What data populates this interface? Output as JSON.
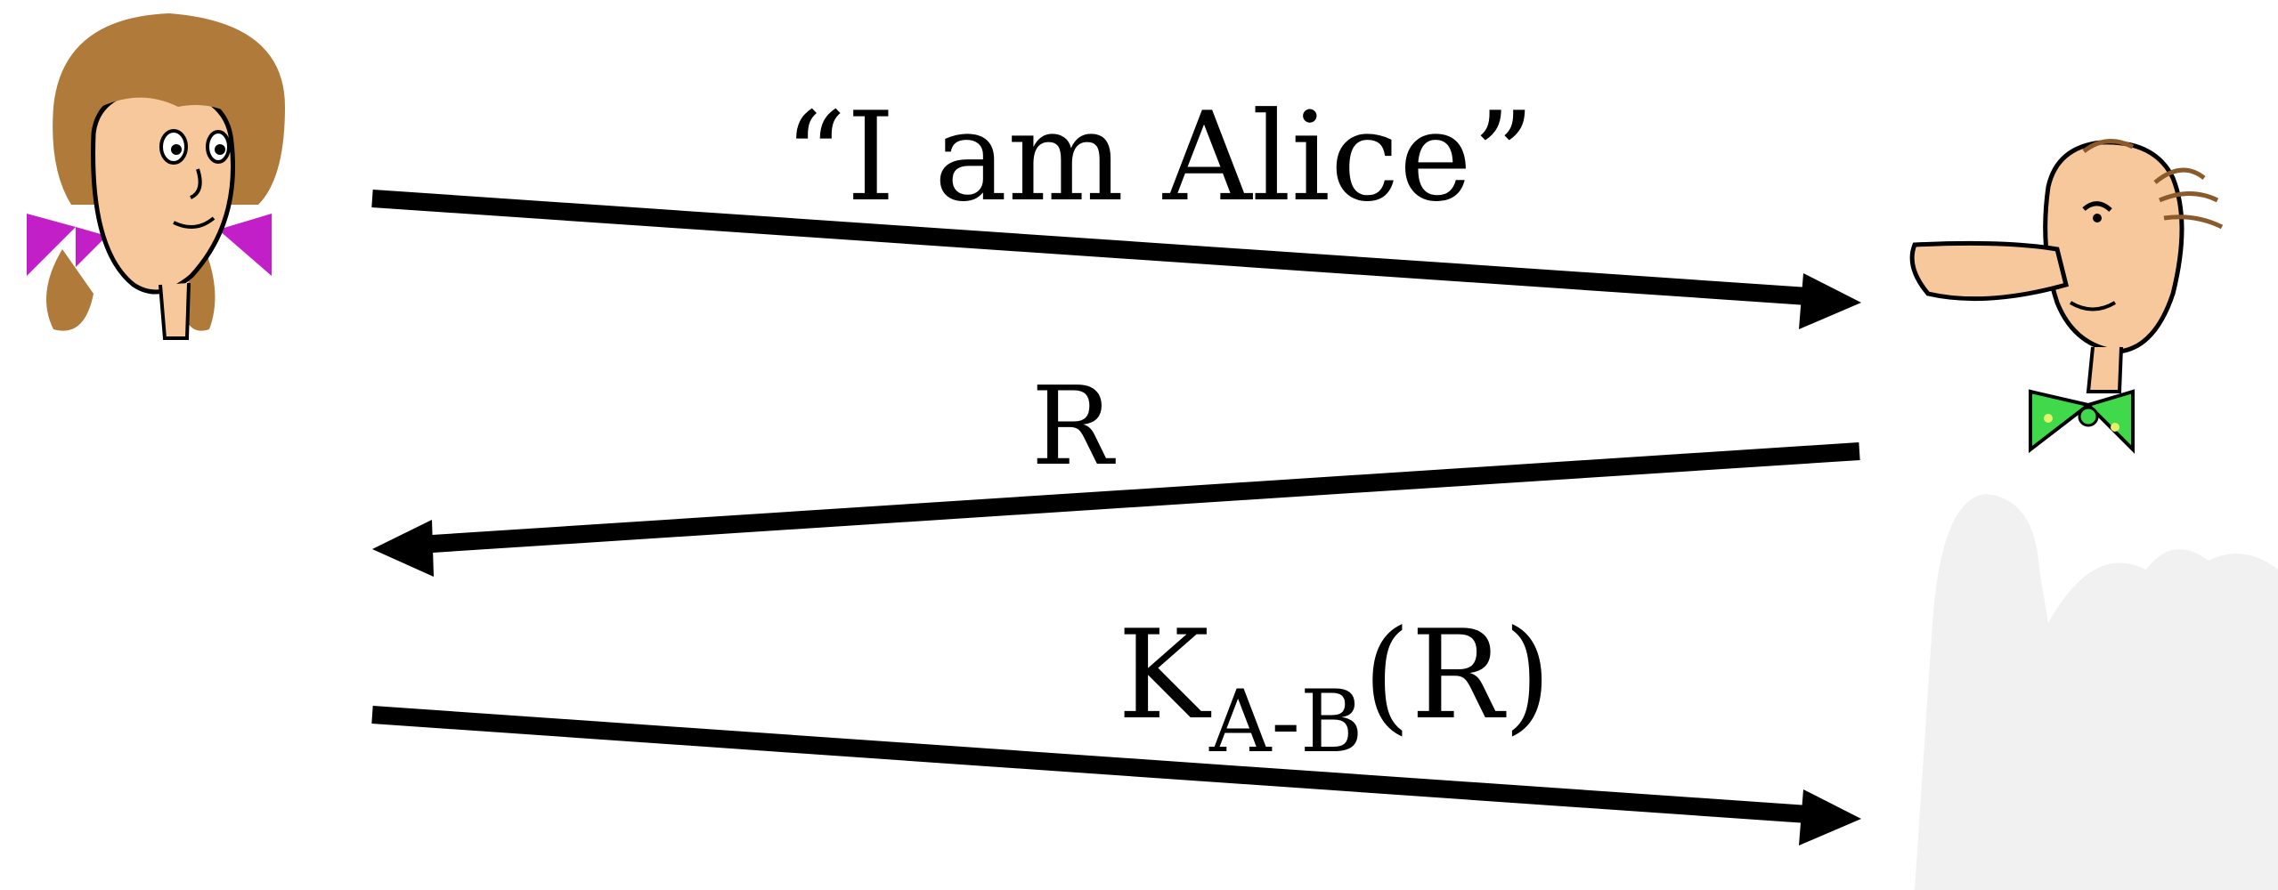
{
  "participants": {
    "alice": {
      "icon": "alice-cartoon-icon"
    },
    "bob": {
      "icon": "bob-cartoon-icon"
    }
  },
  "messages": [
    {
      "text": "“I am Alice”",
      "direction": "alice-to-bob"
    },
    {
      "text": "R",
      "direction": "bob-to-alice"
    },
    {
      "key": "K",
      "key_subscript": "A-B",
      "argument": "(R)",
      "direction": "alice-to-bob"
    }
  ],
  "colors": {
    "arrow": "#000000",
    "alice_hair": "#b07a3a",
    "alice_skin": "#f7c89b",
    "alice_bow": "#c21fc8",
    "bob_skin": "#f7c89b",
    "bob_bowtie": "#3fd94b",
    "shadow": "#f1f1f1"
  }
}
